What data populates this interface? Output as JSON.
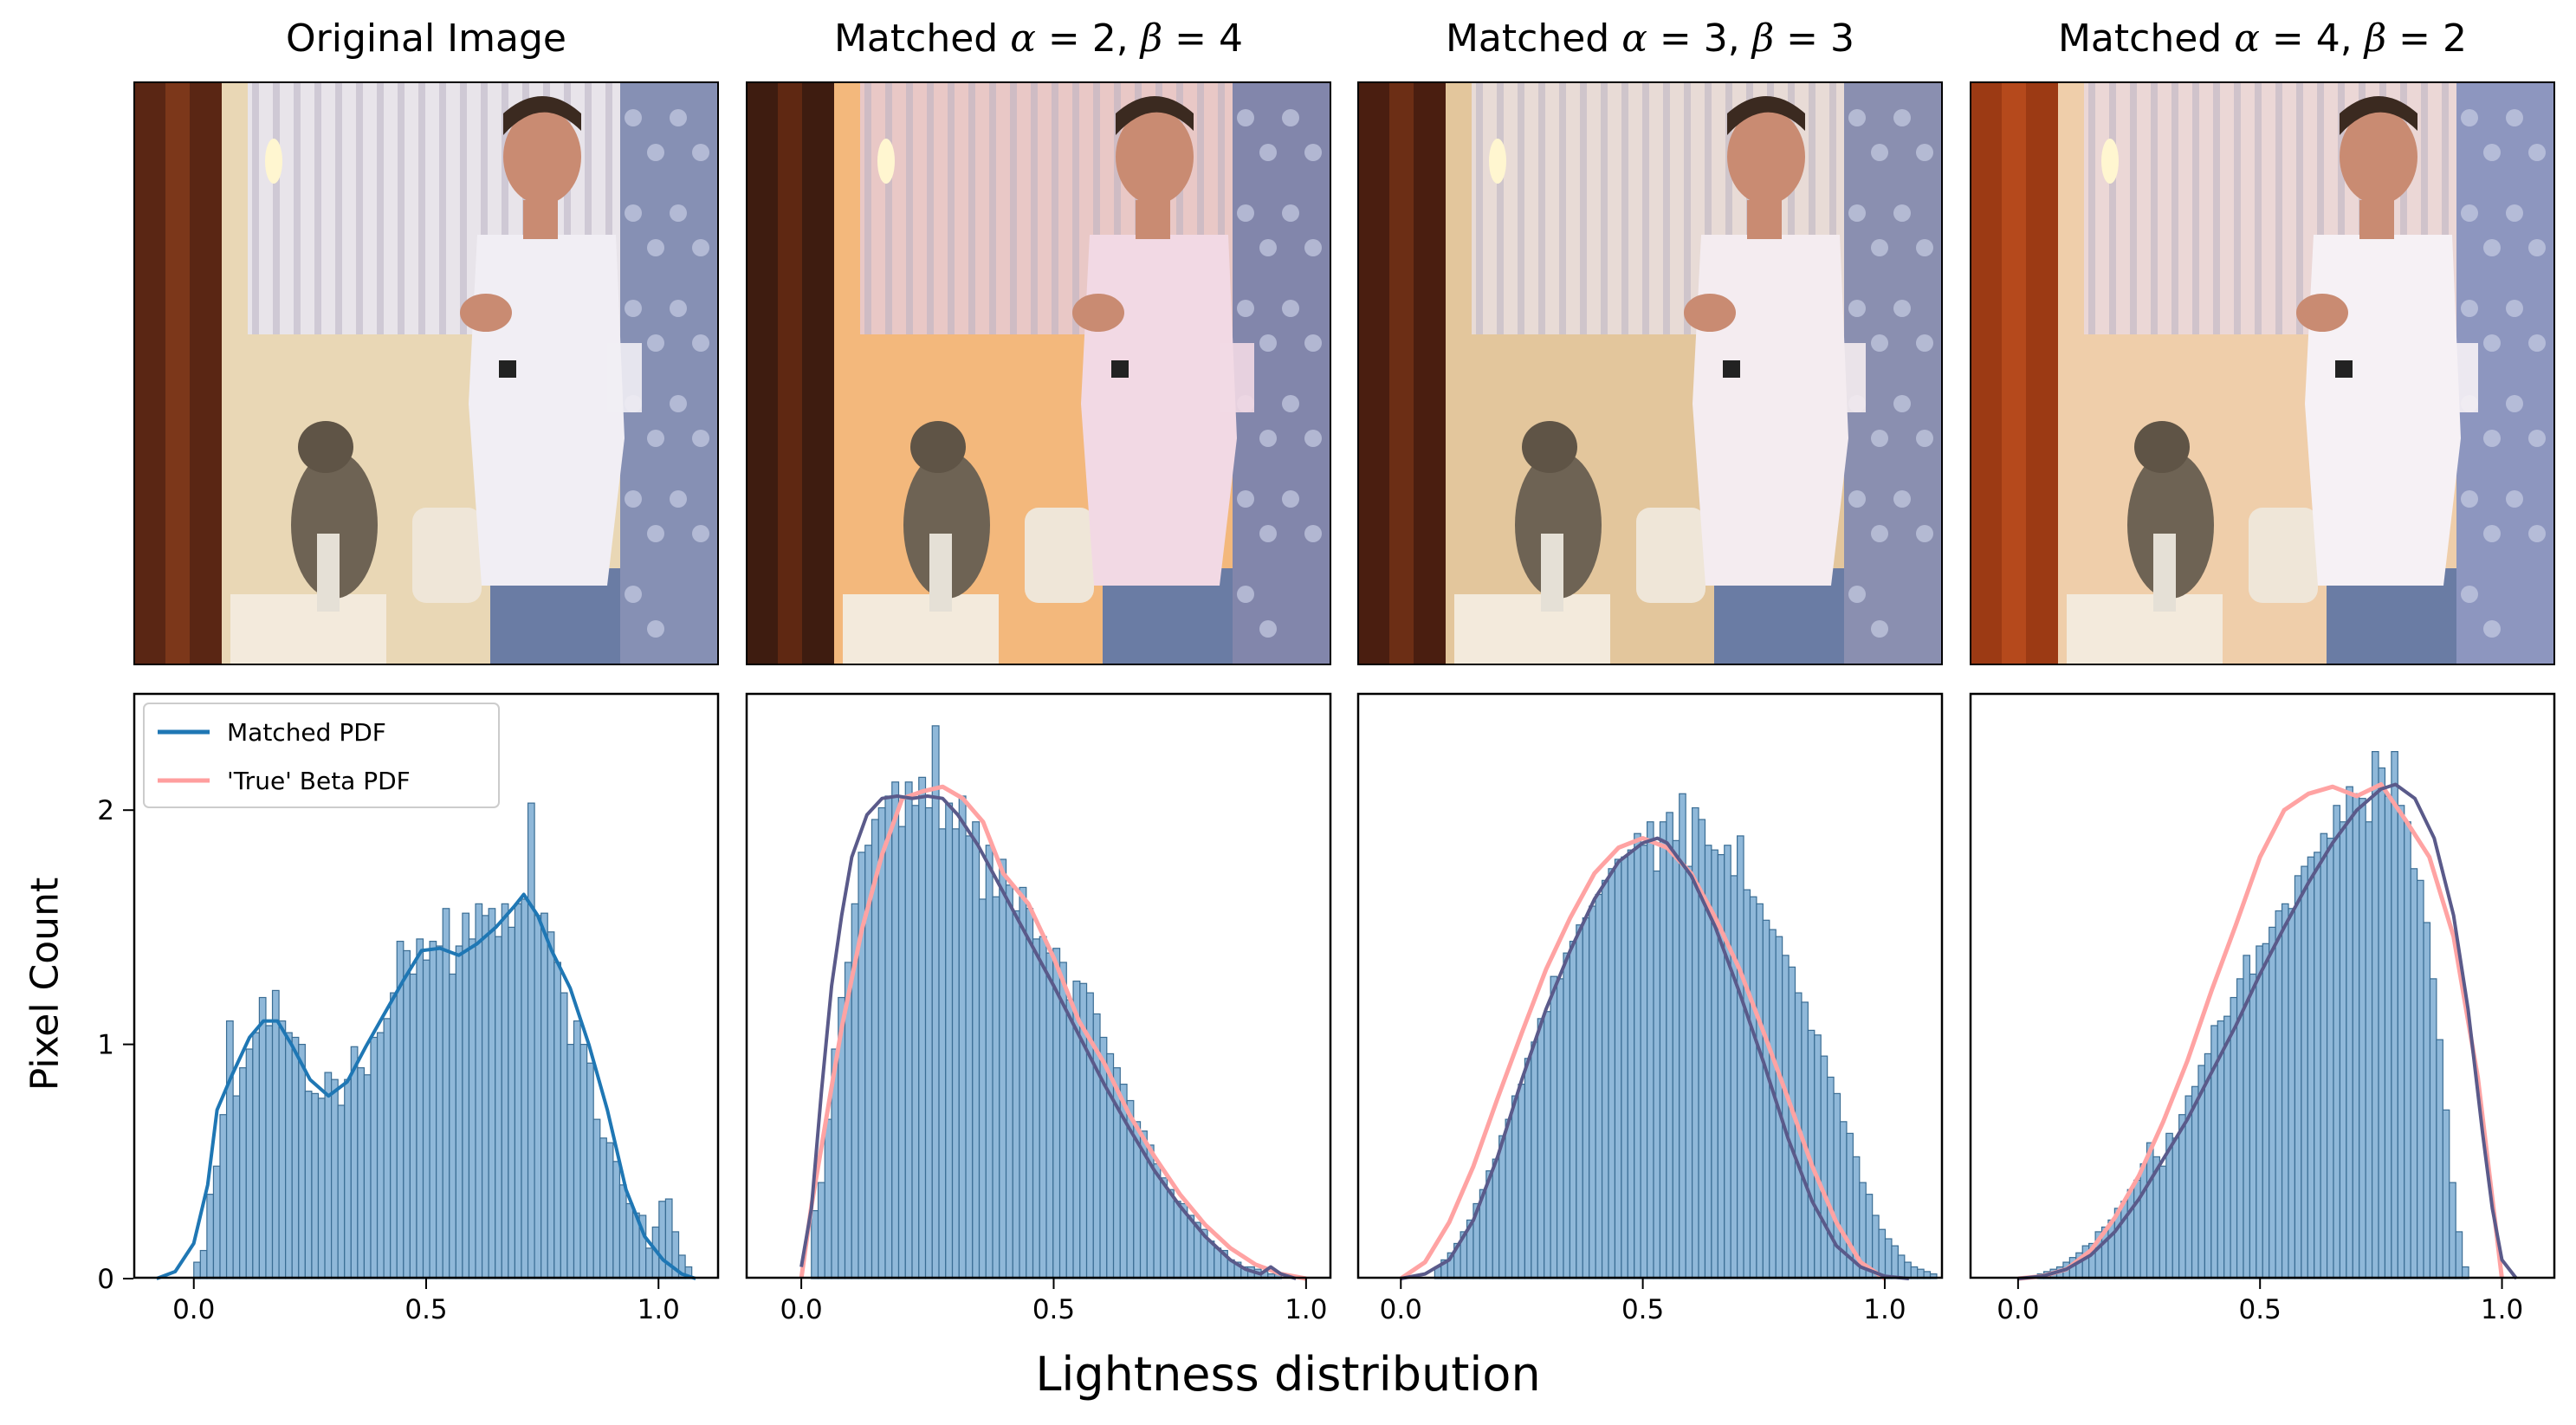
{
  "figure": {
    "xlabel": "Lightness distribution",
    "ylabel": "Pixel Count"
  },
  "panels": [
    {
      "title_prefix": "Original Image",
      "alpha": "",
      "beta": "",
      "tint": "original"
    },
    {
      "title_prefix": "Matched ",
      "alpha": "2",
      "beta": "4",
      "tint": "warm"
    },
    {
      "title_prefix": "Matched ",
      "alpha": "3",
      "beta": "3",
      "tint": "neutral"
    },
    {
      "title_prefix": "Matched ",
      "alpha": "4",
      "beta": "2",
      "tint": "red"
    }
  ],
  "legend": {
    "items": [
      "Matched PDF",
      "'True' Beta PDF"
    ],
    "placement": "upper-left",
    "colors": [
      "#1f77b4",
      "#ff9e9e"
    ]
  },
  "colors": {
    "bar_fill": "#8fb8d9",
    "bar_edge": "#3a6d94",
    "kde": "#1f77b4",
    "beta": "#ffa3a3",
    "overlap": "#5a5a8a"
  },
  "chart_data": [
    {
      "type": "bar",
      "title": "Original Image",
      "xlabel": "",
      "ylabel": "Pixel Count",
      "xlim": [
        -0.13,
        1.13
      ],
      "ylim": [
        0,
        2.5
      ],
      "xticks": [
        "0.0",
        "0.5",
        "1.0"
      ],
      "yticks": [
        "0",
        "1",
        "2"
      ],
      "bin_width": 0.0141,
      "bins_start": 0.0,
      "values": [
        0.07,
        0.12,
        0.36,
        0.48,
        0.7,
        1.1,
        0.78,
        0.9,
        0.98,
        1.05,
        1.2,
        1.08,
        1.23,
        1.1,
        1.05,
        1.03,
        1.0,
        0.8,
        0.79,
        0.77,
        0.88,
        0.85,
        0.74,
        0.85,
        0.99,
        0.9,
        0.87,
        1.03,
        1.05,
        1.11,
        1.22,
        1.44,
        1.4,
        1.3,
        1.45,
        1.36,
        1.44,
        1.42,
        1.58,
        1.3,
        1.42,
        1.56,
        1.45,
        1.6,
        1.55,
        1.58,
        1.46,
        1.6,
        1.5,
        1.6,
        1.62,
        2.03,
        1.55,
        1.56,
        1.48,
        1.35,
        1.22,
        1.0,
        1.1,
        1.0,
        0.92,
        0.68,
        0.6,
        0.58,
        0.5,
        0.4,
        0.32,
        0.28,
        0.27,
        0.13,
        0.22,
        0.33,
        0.34,
        0.2,
        0.1,
        0.05
      ],
      "kde_x": [
        -0.08,
        -0.04,
        0.0,
        0.03,
        0.05,
        0.08,
        0.12,
        0.15,
        0.18,
        0.21,
        0.25,
        0.29,
        0.33,
        0.37,
        0.41,
        0.45,
        0.49,
        0.53,
        0.57,
        0.61,
        0.65,
        0.69,
        0.71,
        0.74,
        0.77,
        0.81,
        0.85,
        0.89,
        0.93,
        0.97,
        1.01,
        1.05,
        1.08
      ],
      "kde_y": [
        0.0,
        0.03,
        0.15,
        0.4,
        0.72,
        0.86,
        1.03,
        1.1,
        1.1,
        1.0,
        0.85,
        0.78,
        0.84,
        0.99,
        1.13,
        1.27,
        1.4,
        1.41,
        1.38,
        1.43,
        1.5,
        1.59,
        1.64,
        1.55,
        1.4,
        1.24,
        1.0,
        0.72,
        0.38,
        0.18,
        0.08,
        0.02,
        0.0
      ],
      "beta_x": [],
      "beta_y": []
    },
    {
      "type": "bar",
      "title": "Matched α = 2, β = 4",
      "xlim": [
        -0.11,
        1.05
      ],
      "ylim": [
        0,
        2.5
      ],
      "xticks": [
        "0.0",
        "0.5",
        "1.0"
      ],
      "yticks": [],
      "bin_width": 0.0133,
      "bins_start": 0.02,
      "values": [
        0.29,
        0.41,
        0.68,
        0.98,
        1.2,
        1.35,
        1.6,
        1.82,
        1.85,
        1.96,
        2.01,
        2.06,
        2.12,
        1.93,
        2.12,
        2.02,
        2.14,
        2.01,
        2.36,
        1.92,
        2.03,
        1.92,
        2.06,
        1.89,
        1.95,
        1.62,
        1.85,
        1.63,
        1.79,
        1.68,
        1.57,
        1.67,
        1.58,
        1.45,
        1.46,
        1.39,
        1.41,
        1.35,
        1.19,
        1.27,
        1.26,
        1.22,
        1.13,
        1.03,
        0.96,
        0.9,
        0.83,
        0.76,
        0.67,
        0.63,
        0.57,
        0.49,
        0.43,
        0.38,
        0.33,
        0.32,
        0.27,
        0.24,
        0.21,
        0.16,
        0.13,
        0.12,
        0.08,
        0.07,
        0.05,
        0.05,
        0.04,
        0.03,
        0.02,
        0.02
      ],
      "kde_x": [
        0.0,
        0.02,
        0.04,
        0.06,
        0.08,
        0.1,
        0.13,
        0.16,
        0.19,
        0.22,
        0.25,
        0.28,
        0.31,
        0.35,
        0.4,
        0.45,
        0.5,
        0.55,
        0.6,
        0.65,
        0.7,
        0.75,
        0.8,
        0.85,
        0.88,
        0.91,
        0.93,
        0.95,
        0.98
      ],
      "kde_y": [
        0.05,
        0.3,
        0.8,
        1.25,
        1.55,
        1.8,
        1.98,
        2.05,
        2.06,
        2.05,
        2.06,
        2.05,
        1.98,
        1.85,
        1.65,
        1.45,
        1.25,
        1.04,
        0.83,
        0.64,
        0.46,
        0.31,
        0.18,
        0.08,
        0.04,
        0.02,
        0.05,
        0.02,
        0.0
      ],
      "beta_x": [
        0.0,
        0.02,
        0.05,
        0.08,
        0.12,
        0.16,
        0.2,
        0.24,
        0.28,
        0.32,
        0.36,
        0.4,
        0.45,
        0.5,
        0.55,
        0.6,
        0.65,
        0.7,
        0.75,
        0.8,
        0.85,
        0.9,
        0.95,
        1.0
      ],
      "beta_y": [
        0.0,
        0.31,
        0.69,
        1.07,
        1.49,
        1.81,
        2.05,
        2.08,
        2.1,
        2.05,
        1.95,
        1.73,
        1.6,
        1.37,
        1.1,
        0.92,
        0.7,
        0.52,
        0.36,
        0.23,
        0.13,
        0.06,
        0.02,
        0.0
      ]
    },
    {
      "type": "bar",
      "title": "Matched α = 3, β = 3",
      "xlim": [
        -0.09,
        1.12
      ],
      "ylim": [
        0,
        2.5
      ],
      "xticks": [
        "0.0",
        "0.5",
        "1.0"
      ],
      "yticks": [],
      "bin_width": 0.0133,
      "bins_start": 0.07,
      "values": [
        0.05,
        0.08,
        0.11,
        0.15,
        0.2,
        0.25,
        0.32,
        0.38,
        0.46,
        0.51,
        0.61,
        0.68,
        0.78,
        0.83,
        0.94,
        1.01,
        1.11,
        1.14,
        1.29,
        1.28,
        1.39,
        1.44,
        1.51,
        1.54,
        1.59,
        1.64,
        1.7,
        1.75,
        1.79,
        1.8,
        1.83,
        1.9,
        1.85,
        1.95,
        1.74,
        1.95,
        1.99,
        1.87,
        2.07,
        1.76,
        2.01,
        1.96,
        1.85,
        1.83,
        1.81,
        1.85,
        1.72,
        1.89,
        1.66,
        1.63,
        1.6,
        1.53,
        1.49,
        1.46,
        1.38,
        1.33,
        1.22,
        1.18,
        1.06,
        1.04,
        0.95,
        0.86,
        0.79,
        0.67,
        0.62,
        0.52,
        0.41,
        0.36,
        0.27,
        0.21,
        0.17,
        0.14,
        0.1,
        0.07,
        0.05,
        0.04,
        0.03,
        0.02
      ],
      "kde_x": [
        0.0,
        0.05,
        0.1,
        0.15,
        0.2,
        0.25,
        0.3,
        0.35,
        0.4,
        0.45,
        0.5,
        0.53,
        0.55,
        0.6,
        0.65,
        0.7,
        0.75,
        0.8,
        0.85,
        0.9,
        0.95,
        1.0,
        1.05
      ],
      "kde_y": [
        0.0,
        0.02,
        0.08,
        0.25,
        0.52,
        0.85,
        1.15,
        1.4,
        1.62,
        1.78,
        1.86,
        1.88,
        1.86,
        1.72,
        1.5,
        1.22,
        0.92,
        0.6,
        0.33,
        0.14,
        0.05,
        0.01,
        0.0
      ],
      "beta_x": [
        0.0,
        0.05,
        0.1,
        0.15,
        0.2,
        0.25,
        0.3,
        0.35,
        0.4,
        0.45,
        0.5,
        0.55,
        0.6,
        0.65,
        0.7,
        0.75,
        0.8,
        0.85,
        0.9,
        0.95,
        1.0
      ],
      "beta_y": [
        0.0,
        0.07,
        0.24,
        0.48,
        0.77,
        1.05,
        1.32,
        1.54,
        1.73,
        1.84,
        1.88,
        1.84,
        1.73,
        1.54,
        1.32,
        1.05,
        0.77,
        0.48,
        0.24,
        0.07,
        0.0
      ]
    },
    {
      "type": "bar",
      "title": "Matched α = 4, β = 2",
      "xlim": [
        -0.1,
        1.11
      ],
      "ylim": [
        0,
        2.5
      ],
      "xticks": [
        "0.0",
        "0.5",
        "1.0"
      ],
      "yticks": [],
      "bin_width": 0.0133,
      "bins_start": 0.04,
      "values": [
        0.02,
        0.03,
        0.04,
        0.05,
        0.07,
        0.09,
        0.11,
        0.14,
        0.15,
        0.2,
        0.22,
        0.25,
        0.3,
        0.33,
        0.38,
        0.42,
        0.49,
        0.58,
        0.52,
        0.48,
        0.62,
        0.6,
        0.7,
        0.78,
        0.82,
        0.91,
        0.96,
        1.08,
        1.1,
        1.12,
        1.2,
        1.28,
        1.38,
        1.3,
        1.42,
        1.43,
        1.5,
        1.57,
        1.6,
        1.58,
        1.72,
        1.76,
        1.8,
        1.82,
        1.9,
        1.88,
        2.02,
        1.95,
        2.1,
        2.07,
        2.05,
        1.95,
        2.25,
        2.18,
        2.06,
        2.25,
        2.02,
        1.95,
        1.75,
        1.7,
        1.52,
        1.28,
        1.02,
        0.72,
        0.41,
        0.2,
        0.05
      ],
      "kde_x": [
        0.0,
        0.05,
        0.1,
        0.15,
        0.2,
        0.25,
        0.3,
        0.35,
        0.4,
        0.45,
        0.5,
        0.55,
        0.6,
        0.65,
        0.7,
        0.75,
        0.78,
        0.82,
        0.86,
        0.9,
        0.93,
        0.96,
        0.98,
        1.0,
        1.03
      ],
      "kde_y": [
        0.0,
        0.01,
        0.04,
        0.1,
        0.2,
        0.34,
        0.51,
        0.68,
        0.88,
        1.08,
        1.3,
        1.5,
        1.69,
        1.86,
        2.0,
        2.09,
        2.11,
        2.05,
        1.88,
        1.55,
        1.15,
        0.62,
        0.3,
        0.08,
        0.0
      ],
      "beta_x": [
        0.0,
        0.05,
        0.1,
        0.15,
        0.2,
        0.25,
        0.3,
        0.35,
        0.4,
        0.45,
        0.5,
        0.55,
        0.6,
        0.65,
        0.7,
        0.75,
        0.8,
        0.85,
        0.9,
        0.95,
        1.0
      ],
      "beta_y": [
        0.0,
        0.01,
        0.04,
        0.12,
        0.26,
        0.44,
        0.67,
        0.93,
        1.23,
        1.51,
        1.8,
        2.0,
        2.07,
        2.1,
        2.06,
        2.11,
        1.96,
        1.8,
        1.46,
        0.86,
        0.0
      ]
    }
  ]
}
